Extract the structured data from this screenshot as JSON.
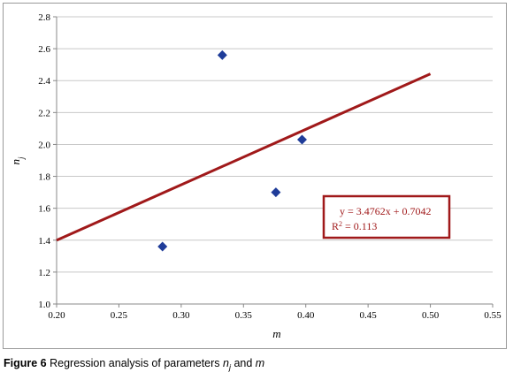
{
  "chart_data": {
    "type": "scatter",
    "xlabel": "m",
    "ylabel": "n",
    "ylabel_sub": "j",
    "xlim": [
      0.2,
      0.55
    ],
    "ylim": [
      1.0,
      2.8
    ],
    "x_ticks": [
      "0.20",
      "0.25",
      "0.30",
      "0.35",
      "0.40",
      "0.45",
      "0.50",
      "0.55"
    ],
    "y_ticks": [
      "1.0",
      "1.2",
      "1.4",
      "1.6",
      "1.8",
      "2.0",
      "2.2",
      "2.4",
      "2.6",
      "2.8"
    ],
    "grid": "horizontal",
    "points": [
      {
        "x": 0.285,
        "y": 1.36
      },
      {
        "x": 0.333,
        "y": 2.56
      },
      {
        "x": 0.376,
        "y": 1.7
      },
      {
        "x": 0.397,
        "y": 2.03
      }
    ],
    "trendline": {
      "slope": 3.4762,
      "intercept": 0.7042,
      "x_range": [
        0.2,
        0.5
      ]
    },
    "equation": "y = 3.4762x + 0.7042",
    "r2_label": "R",
    "r2_sup": "2",
    "r2_value": " = 0.113",
    "colors": {
      "points": "#1f3c99",
      "trendline": "#a0191a",
      "grid": "#c8c8c8"
    }
  },
  "caption": {
    "label": "Figure 6",
    "text_before": " Regression analysis of parameters ",
    "var1": "n",
    "var1_sub": "j",
    "text_middle": " and ",
    "var2": "m"
  }
}
